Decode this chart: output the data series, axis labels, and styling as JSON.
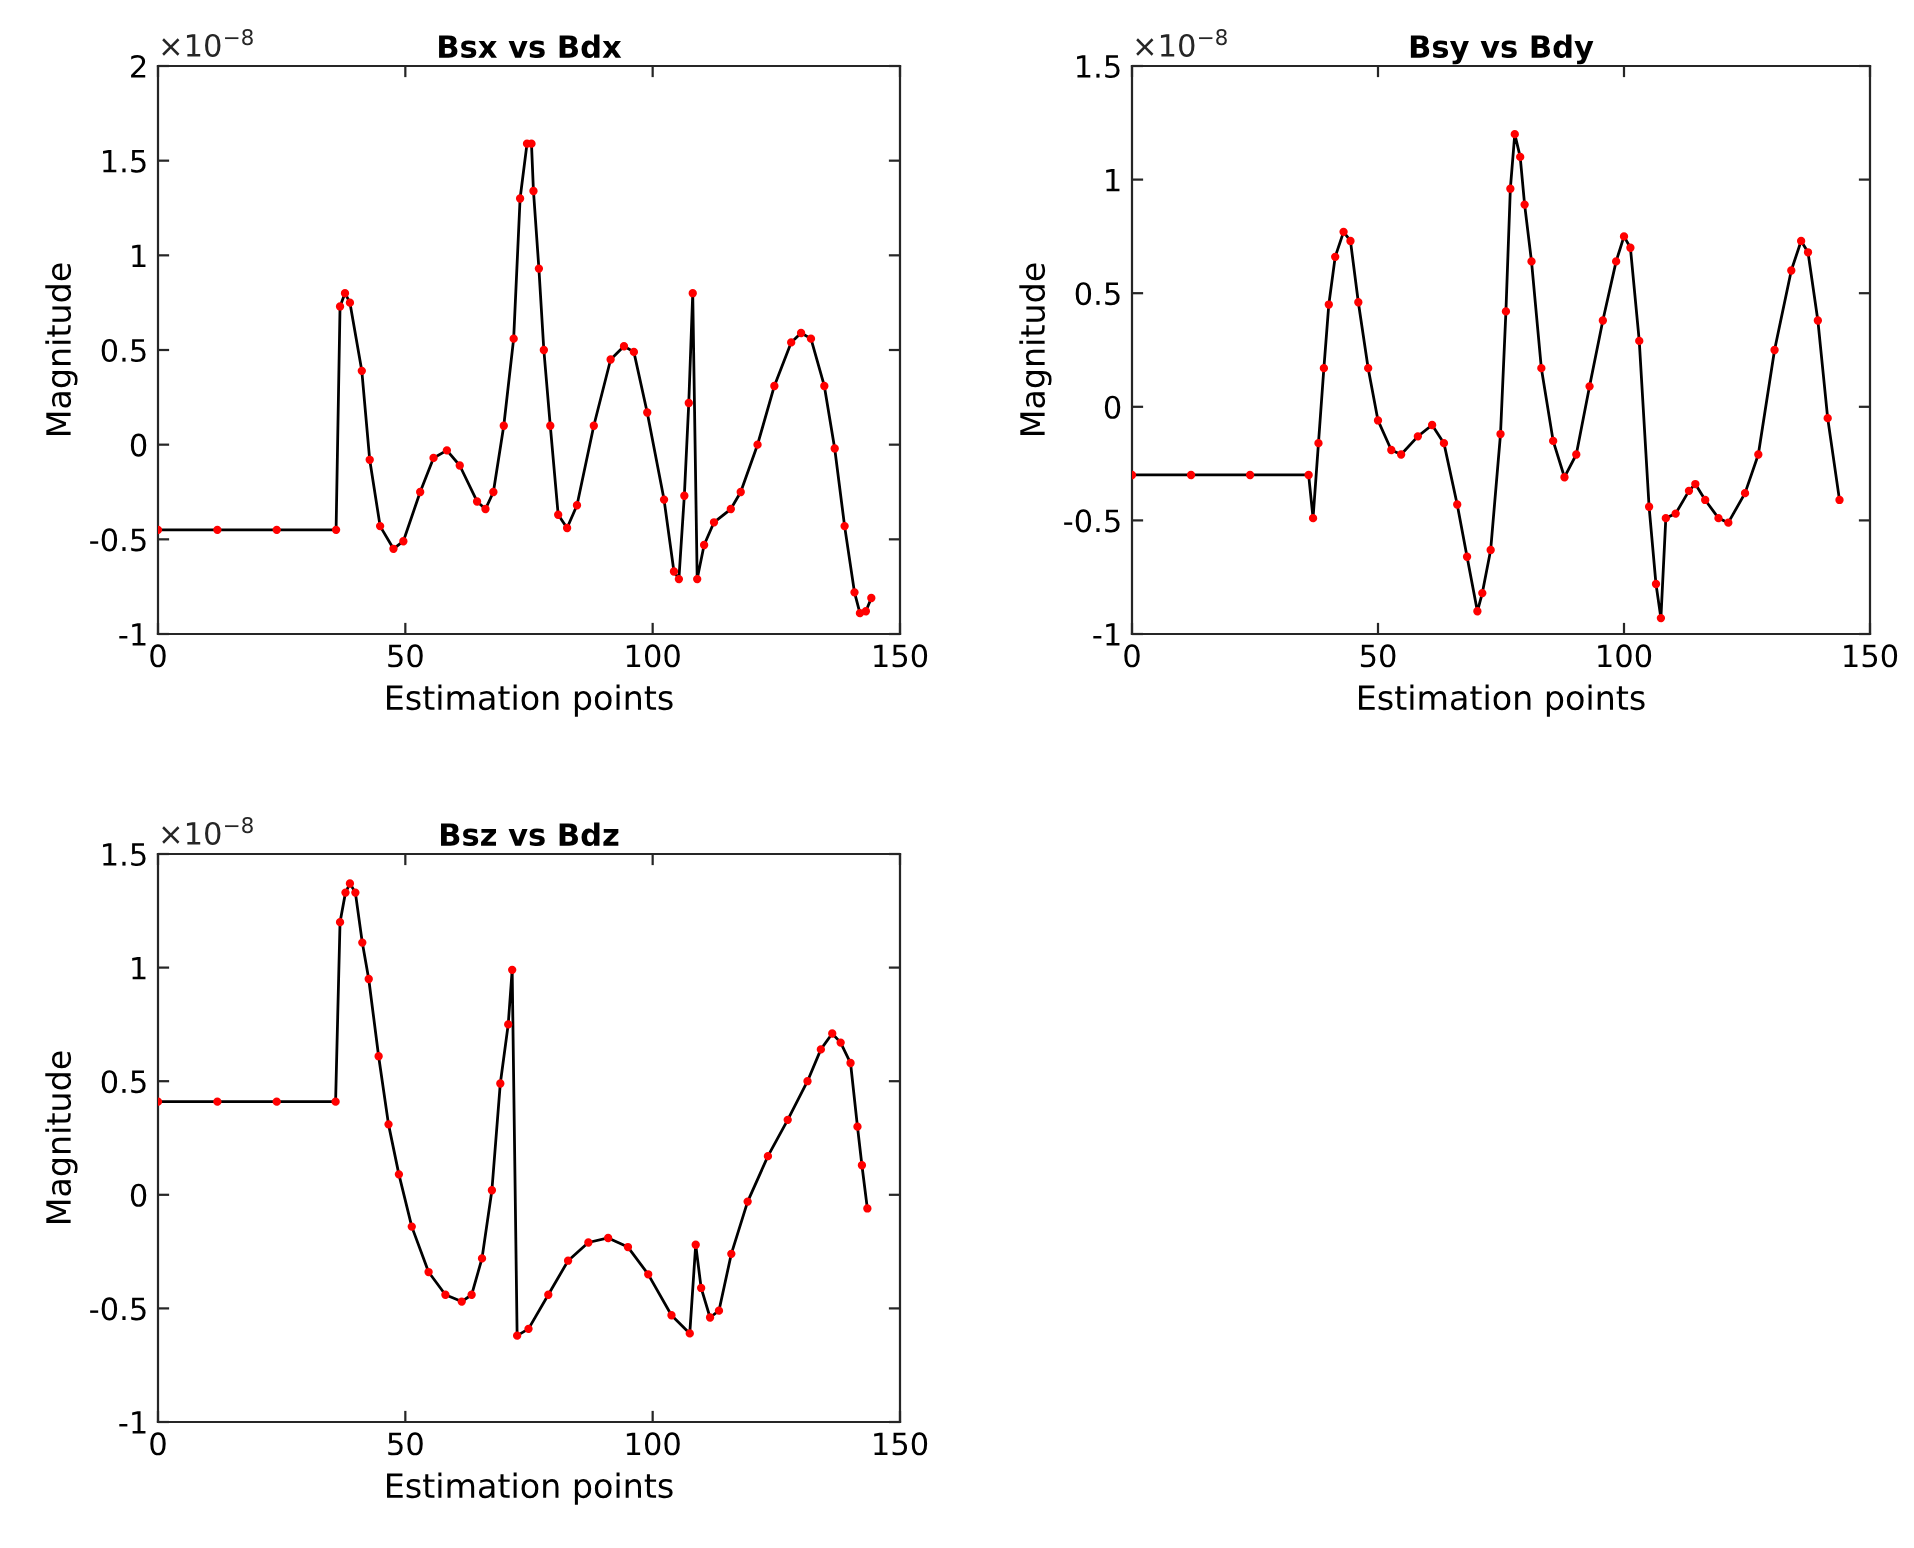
{
  "chart_data": [
    {
      "type": "line",
      "title": "Bsx vs Bdx",
      "xlabel": "Estimation points",
      "ylabel": "Magnitude",
      "annotations": [
        "×10$^{−8}$"
      ],
      "xlim": [
        0,
        150
      ],
      "xticks": [
        0,
        50,
        100,
        150
      ],
      "ylim": [
        -1,
        2
      ],
      "yticks": [
        -1,
        -0.5,
        0,
        0.5,
        1,
        1.5,
        2
      ],
      "grid": false,
      "series": [
        {
          "type": "line",
          "color": "#000000",
          "marker": "none",
          "x": [
            0,
            12,
            24,
            36,
            36.8,
            37.8,
            38.8,
            41.2,
            42.8,
            44.9,
            47.6,
            49.6,
            53,
            55.7,
            58.4,
            61,
            64.5,
            66.2,
            67.8,
            69.9,
            71.9,
            73.2,
            74.6,
            75.5,
            75.9,
            77,
            78,
            79.3,
            80.9,
            82.7,
            84.7,
            88.1,
            91.5,
            94.2,
            96.2,
            98.9,
            102.3,
            104.3,
            105.3,
            106.4,
            107.3,
            108.1,
            109,
            110.4,
            112.4,
            115.8,
            117.8,
            121.2,
            124.6,
            128,
            130,
            132,
            134.7,
            136.8,
            138.8,
            140.8,
            141.9,
            143.1,
            144.2
          ],
          "values": [
            -0.45,
            -0.45,
            -0.45,
            -0.45,
            0.73,
            0.8,
            0.75,
            0.39,
            -0.08,
            -0.43,
            -0.55,
            -0.51,
            -0.25,
            -0.07,
            -0.03,
            -0.11,
            -0.3,
            -0.34,
            -0.25,
            0.1,
            0.56,
            1.3,
            1.59,
            1.59,
            1.34,
            0.93,
            0.5,
            0.1,
            -0.37,
            -0.44,
            -0.32,
            0.1,
            0.45,
            0.52,
            0.49,
            0.17,
            -0.29,
            -0.67,
            -0.71,
            -0.27,
            0.22,
            0.8,
            -0.71,
            -0.53,
            -0.41,
            -0.34,
            -0.25,
            0,
            0.31,
            0.54,
            0.59,
            0.56,
            0.31,
            -0.02,
            -0.43,
            -0.78,
            -0.89,
            -0.88,
            -0.81
          ]
        },
        {
          "type": "scatter",
          "color": "#ff0000",
          "marker": "circle",
          "x": [
            0,
            12,
            24,
            36,
            36.8,
            37.8,
            38.8,
            41.2,
            42.8,
            44.9,
            47.6,
            49.6,
            53,
            55.7,
            58.4,
            61,
            64.5,
            66.2,
            67.8,
            69.9,
            71.9,
            73.2,
            74.6,
            75.5,
            75.9,
            77,
            78,
            79.3,
            80.9,
            82.7,
            84.7,
            88.1,
            91.5,
            94.2,
            96.2,
            98.9,
            102.3,
            104.3,
            105.3,
            106.4,
            107.3,
            108.1,
            109,
            110.4,
            112.4,
            115.8,
            117.8,
            121.2,
            124.6,
            128,
            130,
            132,
            134.7,
            136.8,
            138.8,
            140.8,
            141.9,
            143.1,
            144.2
          ],
          "values": [
            -0.45,
            -0.45,
            -0.45,
            -0.45,
            0.73,
            0.8,
            0.75,
            0.39,
            -0.08,
            -0.43,
            -0.55,
            -0.51,
            -0.25,
            -0.07,
            -0.03,
            -0.11,
            -0.3,
            -0.34,
            -0.25,
            0.1,
            0.56,
            1.3,
            1.59,
            1.59,
            1.34,
            0.93,
            0.5,
            0.1,
            -0.37,
            -0.44,
            -0.32,
            0.1,
            0.45,
            0.52,
            0.49,
            0.17,
            -0.29,
            -0.67,
            -0.71,
            -0.27,
            0.22,
            0.8,
            -0.71,
            -0.53,
            -0.41,
            -0.34,
            -0.25,
            0,
            0.31,
            0.54,
            0.59,
            0.56,
            0.31,
            -0.02,
            -0.43,
            -0.78,
            -0.89,
            -0.88,
            -0.81
          ]
        }
      ]
    },
    {
      "type": "line",
      "title": "Bsy vs Bdy",
      "xlabel": "Estimation points",
      "ylabel": "Magnitude",
      "annotations": [
        "×10$^{−8}$"
      ],
      "xlim": [
        0,
        150
      ],
      "xticks": [
        0,
        50,
        100,
        150
      ],
      "ylim": [
        -1,
        1.5
      ],
      "yticks": [
        -1,
        -0.5,
        0,
        0.5,
        1,
        1.5
      ],
      "grid": false,
      "series": [
        {
          "type": "line",
          "color": "#000000",
          "marker": "none",
          "x": [
            0,
            12,
            24,
            35.9,
            36.8,
            37.9,
            39,
            40,
            41.3,
            43,
            44.4,
            46,
            48,
            50,
            52.7,
            54.7,
            58.1,
            61,
            63.4,
            66.1,
            68.1,
            70.2,
            71.2,
            72.9,
            74.9,
            76,
            76.9,
            77.8,
            78.9,
            79.8,
            81.2,
            83.2,
            85.6,
            87.9,
            90.3,
            93,
            95.7,
            98.4,
            100,
            101.3,
            103.1,
            105.1,
            106.5,
            107.5,
            108.5,
            110.5,
            113.2,
            114.5,
            116.5,
            119.2,
            121.2,
            124.6,
            127.3,
            130.6,
            134,
            136,
            137.4,
            139.4,
            141.4,
            143.8
          ],
          "values": [
            -0.3,
            -0.3,
            -0.3,
            -0.3,
            -0.49,
            -0.16,
            0.17,
            0.45,
            0.66,
            0.77,
            0.73,
            0.46,
            0.17,
            -0.06,
            -0.19,
            -0.21,
            -0.13,
            -0.08,
            -0.16,
            -0.43,
            -0.66,
            -0.9,
            -0.82,
            -0.63,
            -0.12,
            0.42,
            0.96,
            1.2,
            1.1,
            0.89,
            0.64,
            0.17,
            -0.15,
            -0.31,
            -0.21,
            0.09,
            0.38,
            0.64,
            0.75,
            0.7,
            0.29,
            -0.44,
            -0.78,
            -0.93,
            -0.49,
            -0.47,
            -0.37,
            -0.34,
            -0.41,
            -0.49,
            -0.51,
            -0.38,
            -0.21,
            0.25,
            0.6,
            0.73,
            0.68,
            0.38,
            -0.05,
            -0.41
          ]
        },
        {
          "type": "scatter",
          "color": "#ff0000",
          "marker": "circle",
          "x": [
            0,
            12,
            24,
            35.9,
            36.8,
            37.9,
            39,
            40,
            41.3,
            43,
            44.4,
            46,
            48,
            50,
            52.7,
            54.7,
            58.1,
            61,
            63.4,
            66.1,
            68.1,
            70.2,
            71.2,
            72.9,
            74.9,
            76,
            76.9,
            77.8,
            78.9,
            79.8,
            81.2,
            83.2,
            85.6,
            87.9,
            90.3,
            93,
            95.7,
            98.4,
            100,
            101.3,
            103.1,
            105.1,
            106.5,
            107.5,
            108.5,
            110.5,
            113.2,
            114.5,
            116.5,
            119.2,
            121.2,
            124.6,
            127.3,
            130.6,
            134,
            136,
            137.4,
            139.4,
            141.4,
            143.8
          ],
          "values": [
            -0.3,
            -0.3,
            -0.3,
            -0.3,
            -0.49,
            -0.16,
            0.17,
            0.45,
            0.66,
            0.77,
            0.73,
            0.46,
            0.17,
            -0.06,
            -0.19,
            -0.21,
            -0.13,
            -0.08,
            -0.16,
            -0.43,
            -0.66,
            -0.9,
            -0.82,
            -0.63,
            -0.12,
            0.42,
            0.96,
            1.2,
            1.1,
            0.89,
            0.64,
            0.17,
            -0.15,
            -0.31,
            -0.21,
            0.09,
            0.38,
            0.64,
            0.75,
            0.7,
            0.29,
            -0.44,
            -0.78,
            -0.93,
            -0.49,
            -0.47,
            -0.37,
            -0.34,
            -0.41,
            -0.49,
            -0.51,
            -0.38,
            -0.21,
            0.25,
            0.6,
            0.73,
            0.68,
            0.38,
            -0.05,
            -0.41
          ]
        }
      ]
    },
    {
      "type": "line",
      "title": "Bsz vs Bdz",
      "xlabel": "Estimation points",
      "ylabel": "Magnitude",
      "annotations": [
        "×10$^{−8}$"
      ],
      "xlim": [
        0,
        150
      ],
      "xticks": [
        0,
        50,
        100,
        150
      ],
      "ylim": [
        -1,
        1.5
      ],
      "yticks": [
        -1,
        -0.5,
        0,
        0.5,
        1,
        1.5
      ],
      "grid": false,
      "series": [
        {
          "type": "line",
          "color": "#000000",
          "marker": "none",
          "x": [
            0,
            12,
            24,
            35.9,
            36.8,
            37.9,
            38.8,
            39.9,
            41.3,
            42.6,
            44.6,
            46.6,
            48.7,
            51.3,
            54.7,
            58.1,
            61.4,
            63.4,
            65.5,
            67.5,
            69.2,
            70.8,
            71.6,
            72.6,
            74.9,
            78.9,
            82.9,
            87,
            91,
            95,
            99.1,
            103.8,
            107.5,
            108.7,
            109.8,
            111.6,
            113.4,
            115.9,
            119.2,
            123.3,
            127.3,
            131.3,
            134,
            136.3,
            138,
            140,
            141.4,
            142.3,
            143.4
          ],
          "values": [
            0.41,
            0.41,
            0.41,
            0.41,
            1.2,
            1.33,
            1.37,
            1.33,
            1.11,
            0.95,
            0.61,
            0.31,
            0.09,
            -0.14,
            -0.34,
            -0.44,
            -0.47,
            -0.44,
            -0.28,
            0.02,
            0.49,
            0.75,
            0.99,
            -0.62,
            -0.59,
            -0.44,
            -0.29,
            -0.21,
            -0.19,
            -0.23,
            -0.35,
            -0.53,
            -0.61,
            -0.22,
            -0.41,
            -0.54,
            -0.51,
            -0.26,
            -0.03,
            0.17,
            0.33,
            0.5,
            0.64,
            0.71,
            0.67,
            0.58,
            0.3,
            0.13,
            -0.06
          ]
        },
        {
          "type": "scatter",
          "color": "#ff0000",
          "marker": "circle",
          "x": [
            0,
            12,
            24,
            35.9,
            36.8,
            37.9,
            38.8,
            39.9,
            41.3,
            42.6,
            44.6,
            46.6,
            48.7,
            51.3,
            54.7,
            58.1,
            61.4,
            63.4,
            65.5,
            67.5,
            69.2,
            70.8,
            71.6,
            72.6,
            74.9,
            78.9,
            82.9,
            87,
            91,
            95,
            99.1,
            103.8,
            107.5,
            108.7,
            109.8,
            111.6,
            113.4,
            115.9,
            119.2,
            123.3,
            127.3,
            131.3,
            134,
            136.3,
            138,
            140,
            141.4,
            142.3,
            143.4
          ],
          "values": [
            0.41,
            0.41,
            0.41,
            0.41,
            1.2,
            1.33,
            1.37,
            1.33,
            1.11,
            0.95,
            0.61,
            0.31,
            0.09,
            -0.14,
            -0.34,
            -0.44,
            -0.47,
            -0.44,
            -0.28,
            0.02,
            0.49,
            0.75,
            0.99,
            -0.62,
            -0.59,
            -0.44,
            -0.29,
            -0.21,
            -0.19,
            -0.23,
            -0.35,
            -0.53,
            -0.61,
            -0.22,
            -0.41,
            -0.54,
            -0.51,
            -0.26,
            -0.03,
            0.17,
            0.33,
            0.5,
            0.64,
            0.71,
            0.67,
            0.58,
            0.3,
            0.13,
            -0.06
          ]
        }
      ]
    }
  ]
}
